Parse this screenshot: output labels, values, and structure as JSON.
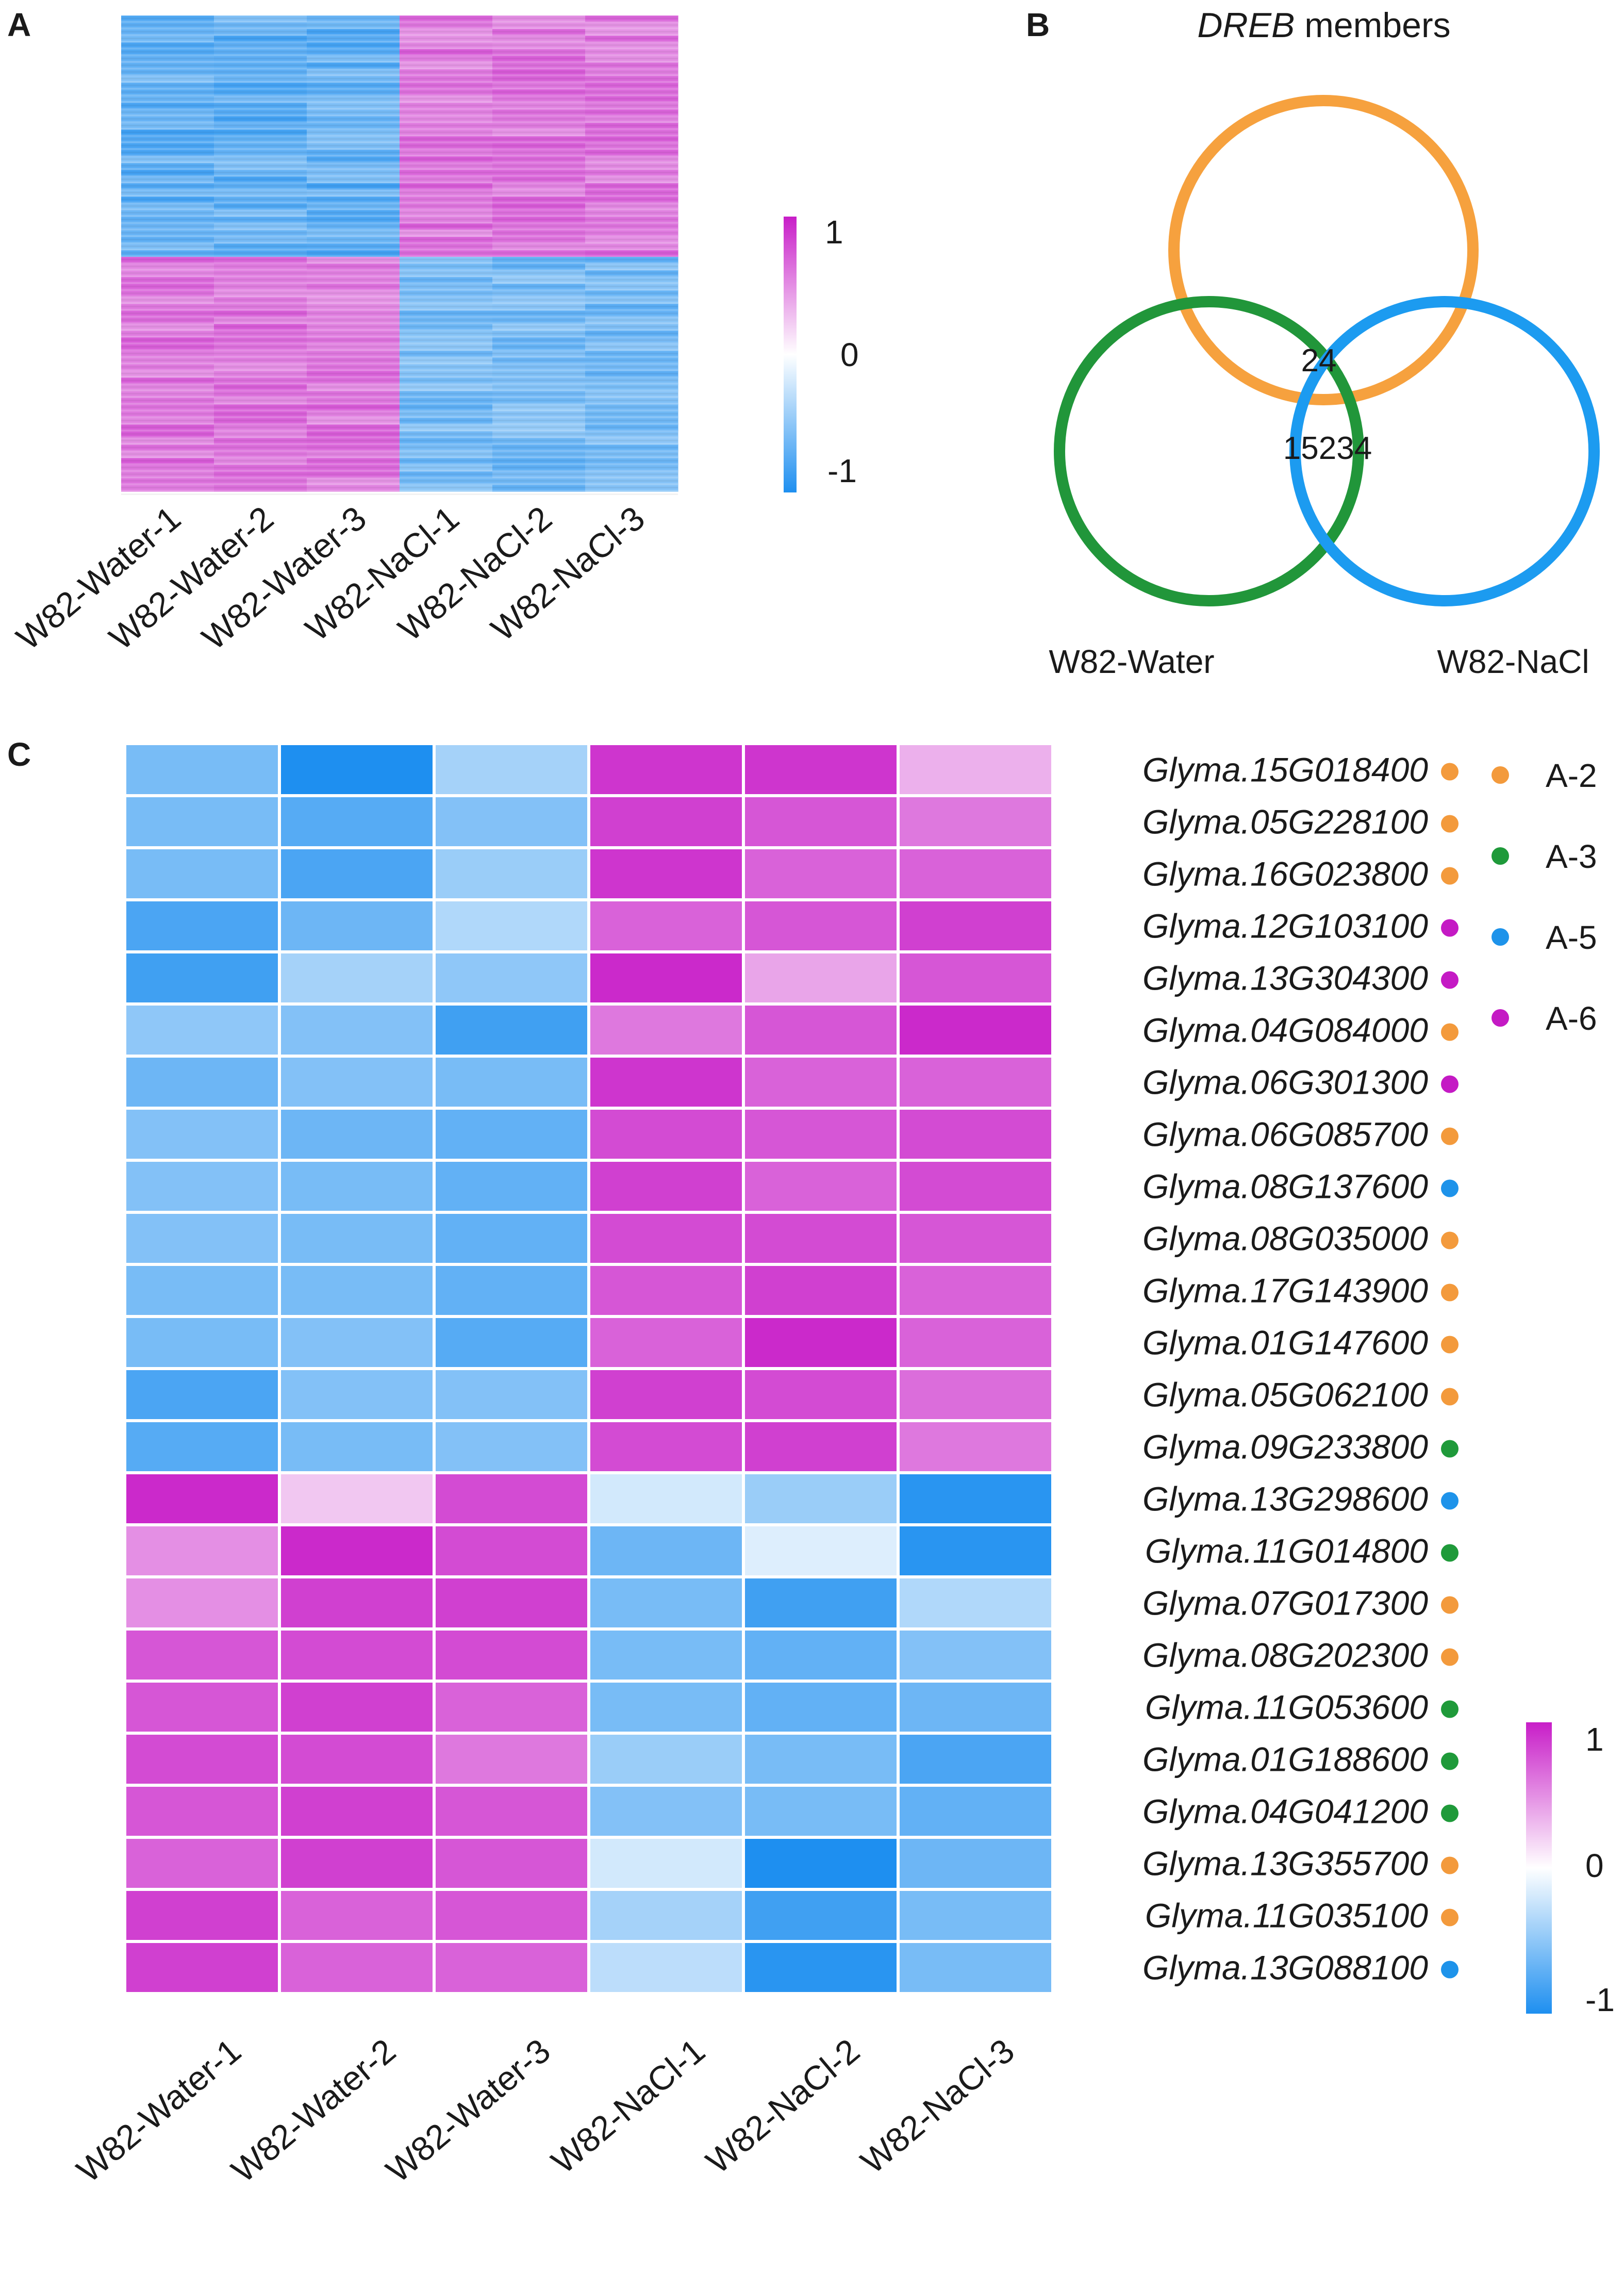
{
  "panels": {
    "a": "A",
    "b": "B",
    "c": "C"
  },
  "samples": [
    "W82-Water-1",
    "W82-Water-2",
    "W82-Water-3",
    "W82-NaCl-1",
    "W82-NaCl-2",
    "W82-NaCl-3"
  ],
  "colors": {
    "low": "#1e8ff0",
    "mid": "#ffffff",
    "high": "#c81ec8",
    "a2": "#f39a3c",
    "a3": "#1f9a3a",
    "a5": "#1e93ea",
    "a6": "#c41ac4",
    "circle_dreb": "#f6a13e",
    "circle_water": "#21963a",
    "circle_nacl": "#1c9bf0"
  },
  "chart_data": [
    {
      "panel": "A",
      "type": "heatmap",
      "title": "",
      "columns": [
        "W82-Water-1",
        "W82-Water-2",
        "W82-Water-3",
        "W82-NaCl-1",
        "W82-NaCl-2",
        "W82-NaCl-3"
      ],
      "blocks": [
        {
          "rows": "upper half",
          "values": [
            -0.7,
            -0.7,
            -0.7,
            0.6,
            0.6,
            0.6
          ]
        },
        {
          "rows": "lower half",
          "values": [
            0.6,
            0.6,
            0.6,
            -0.6,
            -0.6,
            -0.6
          ]
        }
      ],
      "color_scale": {
        "min": -1,
        "max": 1,
        "ticks": [
          1,
          0,
          -1
        ]
      }
    },
    {
      "panel": "B",
      "type": "venn",
      "title": "DREB members",
      "title_italic_part": "DREB",
      "title_rest": " members",
      "sets": [
        "DREB members",
        "W82-Water",
        "W82-NaCl"
      ],
      "set_labels": {
        "water": "W82-Water",
        "nacl": "W82-NaCl"
      },
      "overlaps": {
        "all_three": 24,
        "water_and_nacl": 15234
      },
      "overlap_labels": {
        "all_three": "24",
        "water_and_nacl": "15234"
      }
    },
    {
      "panel": "C",
      "type": "heatmap",
      "columns": [
        "W82-Water-1",
        "W82-Water-2",
        "W82-Water-3",
        "W82-NaCl-1",
        "W82-NaCl-2",
        "W82-NaCl-3"
      ],
      "rows": [
        {
          "gene": "Glyma.15G018400",
          "group": "A-2",
          "values": [
            -0.6,
            -1.0,
            -0.4,
            0.9,
            0.9,
            0.35
          ]
        },
        {
          "gene": "Glyma.05G228100",
          "group": "A-2",
          "values": [
            -0.6,
            -0.75,
            -0.55,
            0.85,
            0.75,
            0.6
          ]
        },
        {
          "gene": "Glyma.16G023800",
          "group": "A-2",
          "values": [
            -0.6,
            -0.8,
            -0.45,
            0.9,
            0.7,
            0.7
          ]
        },
        {
          "gene": "Glyma.12G103100",
          "group": "A-6",
          "values": [
            -0.8,
            -0.65,
            -0.35,
            0.7,
            0.75,
            0.85
          ]
        },
        {
          "gene": "Glyma.13G304300",
          "group": "A-6",
          "values": [
            -0.85,
            -0.4,
            -0.5,
            0.95,
            0.4,
            0.75
          ]
        },
        {
          "gene": "Glyma.04G084000",
          "group": "A-2",
          "values": [
            -0.5,
            -0.55,
            -0.85,
            0.6,
            0.75,
            0.95
          ]
        },
        {
          "gene": "Glyma.06G301300",
          "group": "A-6",
          "values": [
            -0.65,
            -0.55,
            -0.6,
            0.9,
            0.7,
            0.7
          ]
        },
        {
          "gene": "Glyma.06G085700",
          "group": "A-2",
          "values": [
            -0.55,
            -0.65,
            -0.7,
            0.8,
            0.75,
            0.8
          ]
        },
        {
          "gene": "Glyma.08G137600",
          "group": "A-5",
          "values": [
            -0.55,
            -0.6,
            -0.7,
            0.85,
            0.7,
            0.8
          ]
        },
        {
          "gene": "Glyma.08G035000",
          "group": "A-2",
          "values": [
            -0.55,
            -0.6,
            -0.7,
            0.8,
            0.8,
            0.75
          ]
        },
        {
          "gene": "Glyma.17G143900",
          "group": "A-2",
          "values": [
            -0.6,
            -0.6,
            -0.7,
            0.75,
            0.85,
            0.7
          ]
        },
        {
          "gene": "Glyma.01G147600",
          "group": "A-2",
          "values": [
            -0.6,
            -0.55,
            -0.75,
            0.7,
            0.95,
            0.7
          ]
        },
        {
          "gene": "Glyma.05G062100",
          "group": "A-2",
          "values": [
            -0.8,
            -0.55,
            -0.55,
            0.85,
            0.8,
            0.65
          ]
        },
        {
          "gene": "Glyma.09G233800",
          "group": "A-3",
          "values": [
            -0.75,
            -0.6,
            -0.55,
            0.8,
            0.85,
            0.6
          ]
        },
        {
          "gene": "Glyma.13G298600",
          "group": "A-5",
          "values": [
            0.95,
            0.25,
            0.8,
            -0.2,
            -0.45,
            -0.95
          ]
        },
        {
          "gene": "Glyma.11G014800",
          "group": "A-3",
          "values": [
            0.5,
            0.95,
            0.8,
            -0.65,
            -0.15,
            -0.95
          ]
        },
        {
          "gene": "Glyma.07G017300",
          "group": "A-2",
          "values": [
            0.5,
            0.85,
            0.85,
            -0.6,
            -0.85,
            -0.35
          ]
        },
        {
          "gene": "Glyma.08G202300",
          "group": "A-2",
          "values": [
            0.75,
            0.8,
            0.8,
            -0.6,
            -0.7,
            -0.55
          ]
        },
        {
          "gene": "Glyma.11G053600",
          "group": "A-3",
          "values": [
            0.75,
            0.85,
            0.7,
            -0.6,
            -0.7,
            -0.65
          ]
        },
        {
          "gene": "Glyma.01G188600",
          "group": "A-3",
          "values": [
            0.8,
            0.8,
            0.6,
            -0.45,
            -0.6,
            -0.8
          ]
        },
        {
          "gene": "Glyma.04G041200",
          "group": "A-3",
          "values": [
            0.75,
            0.85,
            0.75,
            -0.55,
            -0.6,
            -0.7
          ]
        },
        {
          "gene": "Glyma.13G355700",
          "group": "A-2",
          "values": [
            0.7,
            0.85,
            0.75,
            -0.2,
            -1.0,
            -0.65
          ]
        },
        {
          "gene": "Glyma.11G035100",
          "group": "A-2",
          "values": [
            0.85,
            0.7,
            0.75,
            -0.4,
            -0.85,
            -0.6
          ]
        },
        {
          "gene": "Glyma.13G088100",
          "group": "A-5",
          "values": [
            0.85,
            0.7,
            0.7,
            -0.3,
            -0.95,
            -0.6
          ]
        }
      ],
      "legend": [
        {
          "label": "A-2",
          "color": "#f39a3c"
        },
        {
          "label": "A-3",
          "color": "#1f9a3a"
        },
        {
          "label": "A-5",
          "color": "#1e93ea"
        },
        {
          "label": "A-6",
          "color": "#c41ac4"
        }
      ],
      "color_scale": {
        "min": -1,
        "max": 1,
        "ticks": [
          1,
          0,
          -1
        ]
      }
    }
  ],
  "scale_ticks": [
    "1",
    "0",
    "-1"
  ]
}
